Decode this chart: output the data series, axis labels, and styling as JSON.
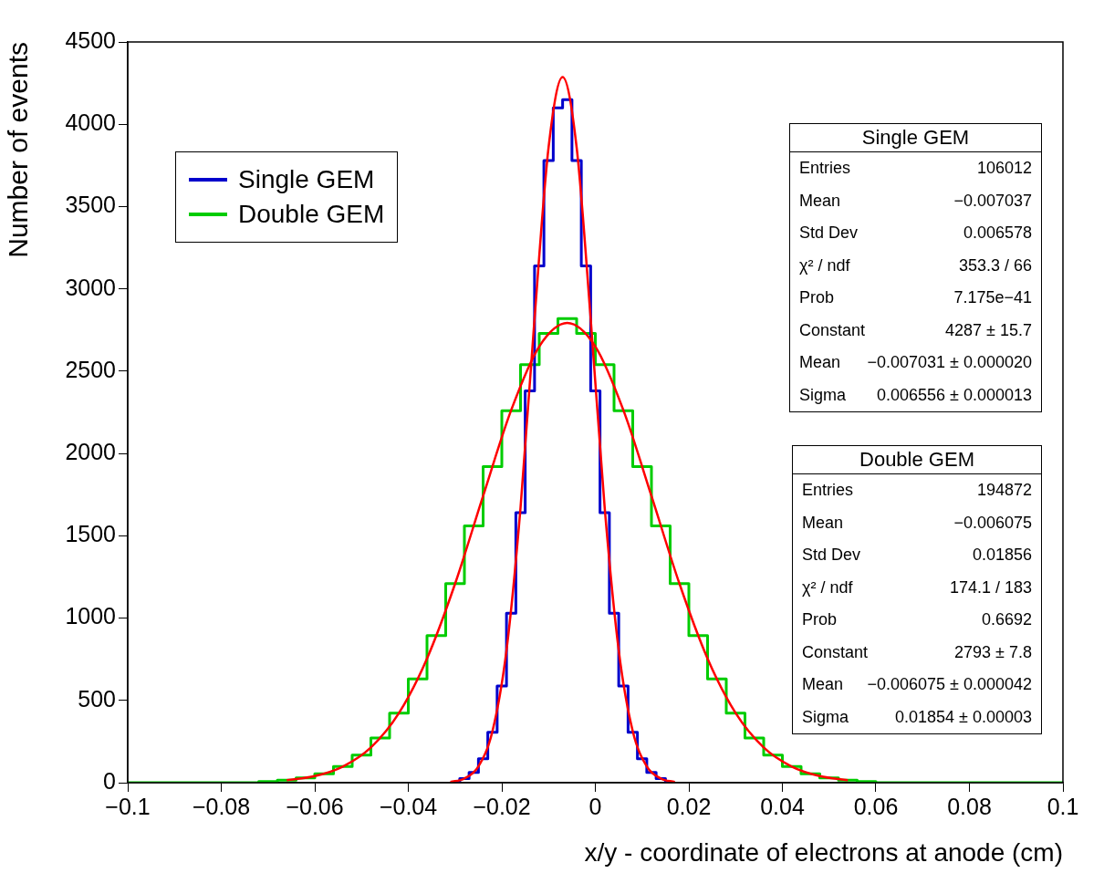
{
  "chart_data": {
    "type": "step",
    "xlabel": "x/y - coordinate of electrons at anode (cm)",
    "ylabel": "Number of events",
    "xlim": [
      -0.1,
      0.1
    ],
    "xticks": [
      -0.1,
      -0.08,
      -0.06,
      -0.04,
      -0.02,
      0,
      0.02,
      0.04,
      0.06,
      0.08,
      0.1
    ],
    "ylim": [
      0,
      4500
    ],
    "yticks": [
      0,
      500,
      1000,
      1500,
      2000,
      2500,
      3000,
      3500,
      4000,
      4500
    ],
    "grid": false,
    "legend": "top left",
    "series": [
      {
        "name": "Single GEM",
        "color": "#0000cc",
        "x": [
          -0.03,
          -0.028,
          -0.026,
          -0.024,
          -0.022,
          -0.02,
          -0.018,
          -0.016,
          -0.014,
          -0.012,
          -0.01,
          -0.008,
          -0.006,
          -0.004,
          -0.002,
          0,
          0.002,
          0.004,
          0.006,
          0.008,
          0.01,
          0.012,
          0.014,
          0.016
        ],
        "values": [
          0,
          25,
          63,
          146,
          306,
          587,
          1030,
          1640,
          2380,
          3140,
          3780,
          4100,
          4150,
          3780,
          3140,
          2380,
          1640,
          1030,
          587,
          306,
          146,
          63,
          25,
          0
        ]
      },
      {
        "name": "Double GEM",
        "color": "#00cc00",
        "x": [
          -0.1,
          -0.074,
          -0.07,
          -0.066,
          -0.062,
          -0.058,
          -0.054,
          -0.05,
          -0.046,
          -0.042,
          -0.038,
          -0.034,
          -0.03,
          -0.026,
          -0.022,
          -0.018,
          -0.014,
          -0.01,
          -0.006,
          -0.002,
          0.002,
          0.006,
          0.01,
          0.014,
          0.018,
          0.022,
          0.026,
          0.03,
          0.034,
          0.038,
          0.042,
          0.046,
          0.05,
          0.054,
          0.058,
          0.062,
          0.1
        ],
        "values": [
          0,
          0,
          7,
          15,
          29,
          54,
          98,
          167,
          272,
          422,
          630,
          893,
          1210,
          1560,
          1920,
          2260,
          2540,
          2730,
          2820,
          2730,
          2540,
          2260,
          1920,
          1560,
          1210,
          893,
          630,
          422,
          272,
          167,
          98,
          54,
          29,
          15,
          7,
          0,
          0
        ]
      },
      {
        "type": "line",
        "color": "#ff0000",
        "x": [
          -0.031,
          -0.028,
          -0.025,
          -0.022,
          -0.019,
          -0.016,
          -0.013,
          -0.01,
          -0.007,
          -0.004,
          -0.001,
          0.002,
          0.005,
          0.008,
          0.011,
          0.014,
          0.017
        ],
        "values": [
          5,
          25,
          99,
          313,
          804,
          1670,
          2820,
          3860,
          4287,
          3860,
          2820,
          1670,
          804,
          313,
          99,
          25,
          5
        ]
      },
      {
        "type": "line",
        "color": "#ff0000",
        "x": [
          -0.066,
          -0.06,
          -0.054,
          -0.048,
          -0.042,
          -0.036,
          -0.03,
          -0.024,
          -0.018,
          -0.012,
          -0.006,
          0,
          0.006,
          0.012,
          0.018,
          0.024,
          0.03,
          0.036,
          0.042,
          0.048,
          0.054
        ],
        "values": [
          15,
          40,
          98,
          214,
          423,
          754,
          1208,
          1742,
          2263,
          2650,
          2793,
          2650,
          2263,
          1742,
          1208,
          754,
          423,
          214,
          98,
          40,
          15
        ]
      }
    ],
    "annotations": [
      "Single GEM\nEntries  106012\nMean  −0.007037\nStd Dev  0.006578\nχ² / ndf  353.3 / 66\nProb  7.175e−41\nConstant  4287 ± 15.7\nMean  −0.007031 ± 0.000020\nSigma  0.006556 ± 0.000013",
      "Double GEM\nEntries  194872\nMean  −0.006075\nStd Dev  0.01856\nχ² / ndf  174.1 / 183\nProb  0.6692\nConstant  2793 ± 7.8\nMean  −0.006075 ± 0.000042\nSigma  0.01854 ± 0.00003"
    ]
  }
}
